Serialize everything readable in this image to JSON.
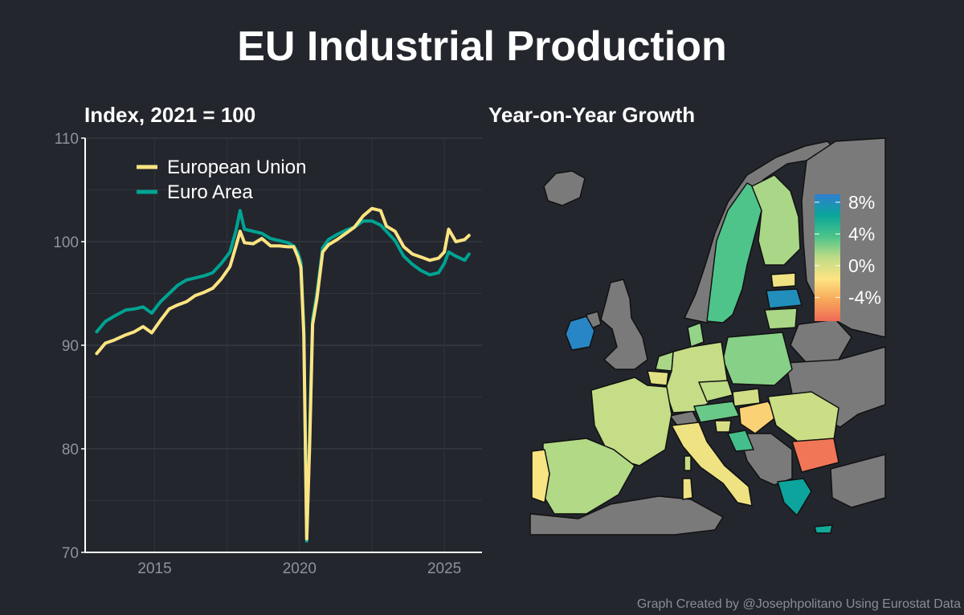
{
  "title": "EU Industrial Production",
  "credit": "Graph Created by @Josephpolitano Using Eurostat Data",
  "colors": {
    "background": "#23262d",
    "european_union": "#fde482",
    "euro_area": "#00a392",
    "grid": "#3a3e46",
    "land_nodata": "#7a7a7a"
  },
  "chart_data": [
    {
      "type": "line",
      "title": "Index, 2021 = 100",
      "ylim": [
        70,
        110
      ],
      "yticks": [
        70,
        80,
        90,
        100,
        110
      ],
      "xlim": [
        2012.6,
        2026.3
      ],
      "xticks": [
        2015,
        2020,
        2025
      ],
      "grid": true,
      "legend": "top-left",
      "series": [
        {
          "name": "European Union",
          "color": "#fde482",
          "points": [
            [
              2013.0,
              89.2
            ],
            [
              2013.3,
              90.2
            ],
            [
              2013.6,
              90.5
            ],
            [
              2014.0,
              91.0
            ],
            [
              2014.3,
              91.3
            ],
            [
              2014.6,
              91.8
            ],
            [
              2014.9,
              91.2
            ],
            [
              2015.2,
              92.4
            ],
            [
              2015.5,
              93.5
            ],
            [
              2015.8,
              93.9
            ],
            [
              2016.1,
              94.2
            ],
            [
              2016.4,
              94.8
            ],
            [
              2016.7,
              95.1
            ],
            [
              2017.0,
              95.5
            ],
            [
              2017.3,
              96.4
            ],
            [
              2017.6,
              97.6
            ],
            [
              2017.8,
              99.5
            ],
            [
              2017.95,
              101.0
            ],
            [
              2018.1,
              99.9
            ],
            [
              2018.4,
              99.8
            ],
            [
              2018.7,
              100.3
            ],
            [
              2019.0,
              99.6
            ],
            [
              2019.3,
              99.6
            ],
            [
              2019.6,
              99.5
            ],
            [
              2019.8,
              99.5
            ],
            [
              2019.95,
              98.5
            ],
            [
              2020.05,
              97.5
            ],
            [
              2020.15,
              91.0
            ],
            [
              2020.25,
              71.3
            ],
            [
              2020.35,
              80.5
            ],
            [
              2020.45,
              92.0
            ],
            [
              2020.6,
              94.5
            ],
            [
              2020.8,
              99.0
            ],
            [
              2021.0,
              99.7
            ],
            [
              2021.3,
              100.2
            ],
            [
              2021.6,
              100.8
            ],
            [
              2021.9,
              101.4
            ],
            [
              2022.2,
              102.5
            ],
            [
              2022.5,
              103.2
            ],
            [
              2022.8,
              103.0
            ],
            [
              2023.0,
              101.5
            ],
            [
              2023.3,
              101.0
            ],
            [
              2023.6,
              99.5
            ],
            [
              2023.9,
              98.8
            ],
            [
              2024.2,
              98.5
            ],
            [
              2024.5,
              98.2
            ],
            [
              2024.8,
              98.4
            ],
            [
              2025.0,
              99.0
            ],
            [
              2025.15,
              101.2
            ],
            [
              2025.4,
              100.0
            ],
            [
              2025.7,
              100.2
            ],
            [
              2025.85,
              100.6
            ]
          ]
        },
        {
          "name": "Euro Area",
          "color": "#00a392",
          "points": [
            [
              2013.0,
              91.3
            ],
            [
              2013.3,
              92.3
            ],
            [
              2013.6,
              92.8
            ],
            [
              2014.0,
              93.4
            ],
            [
              2014.3,
              93.5
            ],
            [
              2014.6,
              93.7
            ],
            [
              2014.9,
              93.1
            ],
            [
              2015.2,
              94.2
            ],
            [
              2015.5,
              95.0
            ],
            [
              2015.8,
              95.8
            ],
            [
              2016.1,
              96.3
            ],
            [
              2016.4,
              96.5
            ],
            [
              2016.7,
              96.7
            ],
            [
              2017.0,
              97.0
            ],
            [
              2017.3,
              97.9
            ],
            [
              2017.6,
              99.0
            ],
            [
              2017.8,
              101.0
            ],
            [
              2017.95,
              103.0
            ],
            [
              2018.1,
              101.2
            ],
            [
              2018.4,
              101.0
            ],
            [
              2018.7,
              100.8
            ],
            [
              2019.0,
              100.3
            ],
            [
              2019.3,
              100.1
            ],
            [
              2019.6,
              99.9
            ],
            [
              2019.8,
              99.6
            ],
            [
              2019.95,
              98.9
            ],
            [
              2020.05,
              98.0
            ],
            [
              2020.15,
              91.5
            ],
            [
              2020.25,
              71.1
            ],
            [
              2020.35,
              81.5
            ],
            [
              2020.45,
              92.5
            ],
            [
              2020.6,
              95.0
            ],
            [
              2020.8,
              99.4
            ],
            [
              2021.0,
              100.2
            ],
            [
              2021.3,
              100.7
            ],
            [
              2021.6,
              101.1
            ],
            [
              2021.9,
              101.4
            ],
            [
              2022.2,
              102.0
            ],
            [
              2022.5,
              102.0
            ],
            [
              2022.8,
              101.6
            ],
            [
              2023.0,
              101.0
            ],
            [
              2023.3,
              100.1
            ],
            [
              2023.6,
              98.6
            ],
            [
              2023.9,
              97.8
            ],
            [
              2024.2,
              97.2
            ],
            [
              2024.5,
              96.8
            ],
            [
              2024.8,
              97.0
            ],
            [
              2025.0,
              97.9
            ],
            [
              2025.15,
              99.0
            ],
            [
              2025.4,
              98.6
            ],
            [
              2025.7,
              98.2
            ],
            [
              2025.85,
              98.8
            ]
          ]
        }
      ]
    },
    {
      "type": "choropleth",
      "title": "Year-on-Year Growth",
      "scale_ticks": [
        "8%",
        "4%",
        "0%",
        "-4%"
      ],
      "scale_range": [
        -7,
        9
      ],
      "scale_colors": [
        "#ef6a56",
        "#f7a85a",
        "#fde482",
        "#bfdc86",
        "#4cc38a",
        "#0aa69a",
        "#2f7fd0"
      ],
      "regions": [
        {
          "id": "ireland",
          "value": 8.5
        },
        {
          "id": "latvia",
          "value": 8.0
        },
        {
          "id": "sweden",
          "value": 3.6
        },
        {
          "id": "finland",
          "value": 1.5
        },
        {
          "id": "estonia",
          "value": -1.0
        },
        {
          "id": "lithuania",
          "value": 1.5
        },
        {
          "id": "poland",
          "value": 2.3
        },
        {
          "id": "germany",
          "value": 0.8
        },
        {
          "id": "denmark",
          "value": 2.0
        },
        {
          "id": "netherlands",
          "value": 1.5
        },
        {
          "id": "belgium",
          "value": -0.5
        },
        {
          "id": "france",
          "value": 0.8
        },
        {
          "id": "spain",
          "value": 1.3
        },
        {
          "id": "portugal",
          "value": -1.5
        },
        {
          "id": "italy",
          "value": -1.0
        },
        {
          "id": "czechia",
          "value": 1.0
        },
        {
          "id": "slovakia",
          "value": 0.2
        },
        {
          "id": "austria",
          "value": 3.0
        },
        {
          "id": "slovenia",
          "value": 0.0
        },
        {
          "id": "hungary",
          "value": -2.5
        },
        {
          "id": "croatia",
          "value": 4.0
        },
        {
          "id": "romania",
          "value": 0.5
        },
        {
          "id": "bulgaria",
          "value": -6.5
        },
        {
          "id": "greece",
          "value": 6.5
        },
        {
          "id": "cyprus",
          "value": 6.0
        },
        {
          "id": "sardinia",
          "value": -1.0
        },
        {
          "id": "corsica",
          "value": 0.8
        }
      ]
    }
  ]
}
